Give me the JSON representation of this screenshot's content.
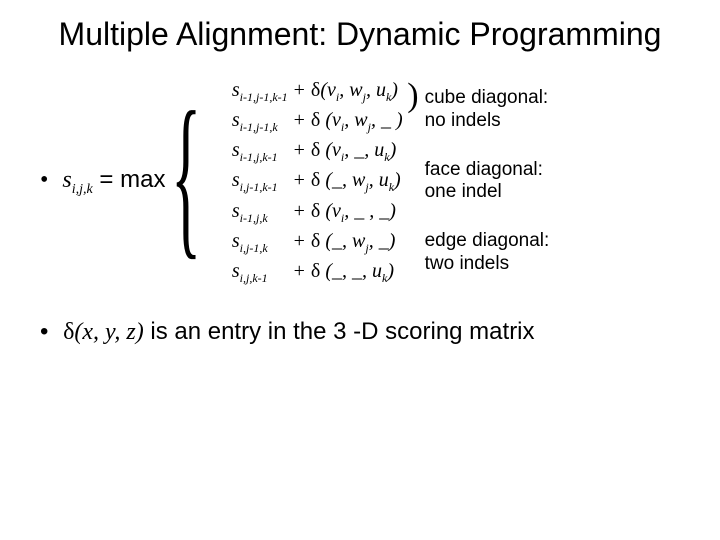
{
  "title": "Multiple Alignment: Dynamic Programming",
  "lhs": {
    "bullet": "•",
    "s": "s",
    "sub": "i,j,k",
    "eq": " = max"
  },
  "cases": [
    {
      "s": "s",
      "sub": "i-1,j-1,k-1",
      "plus": "+",
      "d": "δ",
      "args": "(v",
      "a_i": "i",
      "mid1": ", w",
      "a_j": "j",
      "mid2": ", u",
      "a_k": "k",
      "end": ")"
    },
    {
      "s": "s",
      "sub": "i-1,j-1,k",
      "plus": "+",
      "d": "δ",
      "args": " (v",
      "a_i": "i",
      "mid1": ", w",
      "a_j": "j",
      "mid2": ", _",
      "a_k": "",
      "end": " )"
    },
    {
      "s": "s",
      "sub": "i-1,j,k-1",
      "plus": "+",
      "d": "δ",
      "args": " (v",
      "a_i": "i",
      "mid1": ", _",
      "a_j": "",
      "mid2": ",  u",
      "a_k": "k",
      "end": ")"
    },
    {
      "s": "s",
      "sub": "i,j-1,k-1",
      "plus": "+",
      "d": "δ",
      "args": " (_",
      "a_i": "",
      "mid1": ", w",
      "a_j": "j",
      "mid2": ", u",
      "a_k": "k",
      "end": ")"
    },
    {
      "s": "s",
      "sub": "i-1,j,k",
      "plus": "+",
      "d": "δ",
      "args": " (v",
      "a_i": "i",
      "mid1": ", _",
      "a_j": "",
      "mid2": " , _",
      "a_k": "",
      "end": ")"
    },
    {
      "s": "s",
      "sub": "i,j-1,k",
      "plus": "+",
      "d": "δ",
      "args": " (_",
      "a_i": "",
      "mid1": ", w",
      "a_j": "j",
      "mid2": ", _",
      "a_k": "",
      "end": ")"
    },
    {
      "s": "s",
      "sub": "i,j,k-1",
      "plus": "+",
      "d": "δ",
      "args": " (_",
      "a_i": "",
      "mid1": ", _",
      "a_j": "",
      "mid2": ", u",
      "a_k": "k",
      "end": ")"
    }
  ],
  "annotations": {
    "a1_l1": "cube diagonal:",
    "a1_l2": "no indels",
    "a2_l1": "face diagonal:",
    "a2_l2": "one indel",
    "a3_l1": "edge diagonal:",
    "a3_l2": "two indels"
  },
  "footnote": {
    "bullet": "•",
    "d": "δ",
    "args": "(x, y, z)",
    "rest": " is an entry in the 3 -D scoring matrix"
  },
  "colors": {
    "bg": "#ffffff",
    "text": "#000000"
  },
  "fonts": {
    "title_size": 32,
    "body_size": 24,
    "math_size": 20,
    "annot_size": 19
  }
}
